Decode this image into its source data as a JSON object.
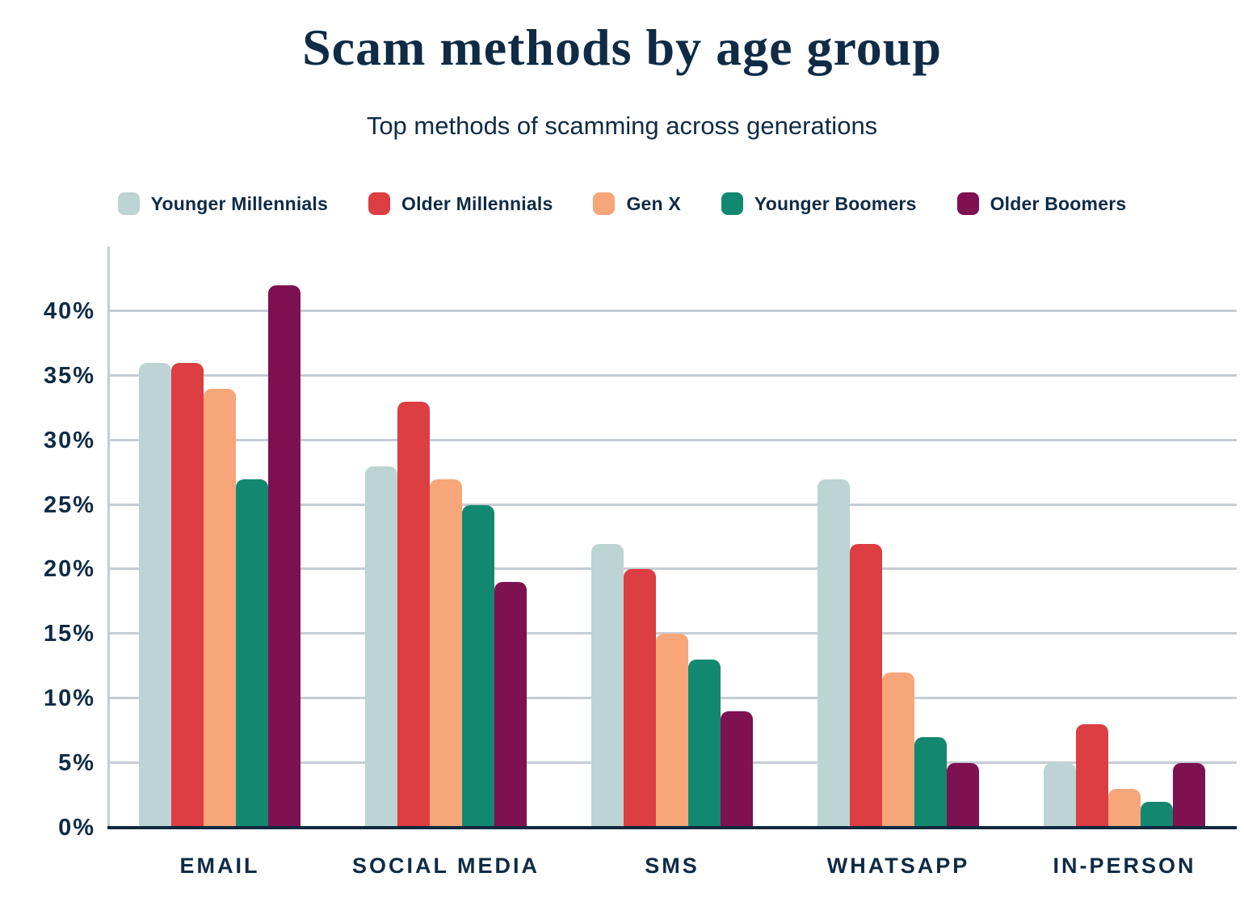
{
  "title": "Scam methods by age group",
  "subtitle": "Top methods of scamming across generations",
  "colors": {
    "background": "#ffffff",
    "text": "#0f2b45",
    "axis": "#102940",
    "gridline": "#c6ccd4"
  },
  "chart_data": {
    "type": "bar",
    "title": "Scam methods by age group",
    "subtitle": "Top methods of scamming across generations",
    "categories": [
      "EMAIL",
      "SOCIAL MEDIA",
      "SMS",
      "WHATSAPP",
      "IN-PERSON"
    ],
    "series": [
      {
        "name": "Younger Millennials",
        "color": "#bcd4d3",
        "values": [
          36,
          28,
          22,
          27,
          5
        ]
      },
      {
        "name": "Older Millennials",
        "color": "#dc3e42",
        "values": [
          36,
          33,
          20,
          22,
          8
        ]
      },
      {
        "name": "Gen X",
        "color": "#f6a679",
        "values": [
          34,
          27,
          15,
          12,
          3
        ]
      },
      {
        "name": "Younger Boomers",
        "color": "#128870",
        "values": [
          27,
          25,
          13,
          7,
          2
        ]
      },
      {
        "name": "Older Boomers",
        "color": "#7e1150",
        "values": [
          42,
          19,
          9,
          5,
          5
        ]
      }
    ],
    "xlabel": "",
    "ylabel": "",
    "y_ticks": [
      "0%",
      "5%",
      "10%",
      "15%",
      "20%",
      "25%",
      "30%",
      "35%",
      "40%"
    ],
    "y_tick_values": [
      0,
      5,
      10,
      15,
      20,
      25,
      30,
      35,
      40
    ],
    "ylim": [
      0,
      45
    ],
    "grid": "horizontal-only",
    "legend_position": "top",
    "bar_unit": "percent"
  }
}
